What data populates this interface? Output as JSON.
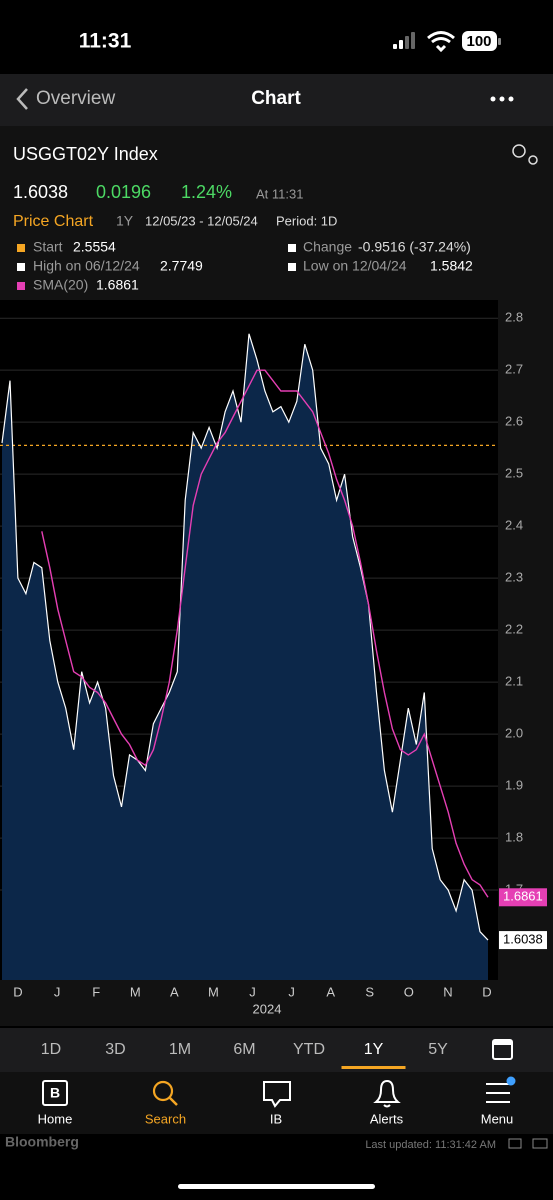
{
  "status_bar": {
    "time": "11:31",
    "battery": "100"
  },
  "nav": {
    "back": "Overview",
    "title": "Chart"
  },
  "header": {
    "ticker": "USGGT02Y Index",
    "price": "1.6038",
    "change": "0.0196",
    "change_pct": "1.24%",
    "time": "At 11:31"
  },
  "chart_header": {
    "title": "Price Chart",
    "period_button": "1Y",
    "range": "12/05/23 - 12/05/24",
    "period": "Period: 1D"
  },
  "stats": {
    "start_label": "Start",
    "start": 2.5554,
    "change_label": "Change",
    "change": "-0.9516 (-37.24%)",
    "high_label": "High on 06/12/24",
    "high": 2.7749,
    "low_label": "Low on 12/04/24",
    "low": 1.5842
  },
  "chart_data": {
    "type": "line",
    "x_labels": [
      "D",
      "J",
      "F",
      "M",
      "A",
      "M",
      "J",
      "J",
      "A",
      "S",
      "O",
      "N",
      "D"
    ],
    "x_sublabel": "2024",
    "ylim": [
      1.527,
      2.835
    ],
    "yticks": [
      1.7,
      1.8,
      1.9,
      {
        "value": 2,
        "label": "2.0"
      },
      2.1,
      2.2,
      2.3,
      2.4,
      2.5,
      2.6,
      2.7,
      2.8
    ],
    "grid": true,
    "start_line_color": "#f5a623",
    "series": [
      {
        "color": "#ffffff",
        "fill": "#0c2749",
        "values": [
          2.56,
          2.68,
          2.3,
          2.27,
          2.33,
          2.32,
          2.18,
          2.1,
          2.05,
          1.97,
          2.12,
          2.06,
          2.1,
          2.05,
          1.92,
          1.86,
          1.96,
          1.95,
          1.93,
          2.02,
          2.05,
          2.08,
          2.12,
          2.45,
          2.58,
          2.55,
          2.59,
          2.55,
          2.62,
          2.66,
          2.6,
          2.77,
          2.72,
          2.66,
          2.62,
          2.63,
          2.6,
          2.64,
          2.75,
          2.7,
          2.55,
          2.52,
          2.45,
          2.5,
          2.38,
          2.32,
          2.25,
          2.08,
          1.93,
          1.85,
          1.95,
          2.05,
          1.98,
          2.08,
          1.78,
          1.72,
          1.7,
          1.66,
          1.72,
          1.7,
          1.62,
          1.6038
        ]
      },
      {
        "name": "SMA(20)",
        "color": "#e53fb4",
        "values": [
          null,
          null,
          null,
          null,
          null,
          2.39,
          2.32,
          2.24,
          2.18,
          2.12,
          2.11,
          2.09,
          2.08,
          2.06,
          2.03,
          2.0,
          1.98,
          1.95,
          1.94,
          1.97,
          2.03,
          2.1,
          2.2,
          2.32,
          2.44,
          2.5,
          2.53,
          2.56,
          2.58,
          2.61,
          2.64,
          2.67,
          2.7,
          2.7,
          2.68,
          2.66,
          2.66,
          2.66,
          2.64,
          2.62,
          2.58,
          2.54,
          2.49,
          2.45,
          2.4,
          2.33,
          2.25,
          2.16,
          2.08,
          2.01,
          1.97,
          1.96,
          1.97,
          2.0,
          1.95,
          1.9,
          1.85,
          1.79,
          1.75,
          1.72,
          1.71,
          1.6861
        ]
      }
    ]
  },
  "timeframes": [
    "1D",
    "3D",
    "1M",
    "6M",
    "YTD",
    "1Y",
    "5Y"
  ],
  "tabs": [
    "Home",
    "Search",
    "IB",
    "Alerts",
    "Menu"
  ],
  "footer": {
    "brand": "Bloomberg",
    "updated": "Last updated: 11:31:42 AM"
  }
}
